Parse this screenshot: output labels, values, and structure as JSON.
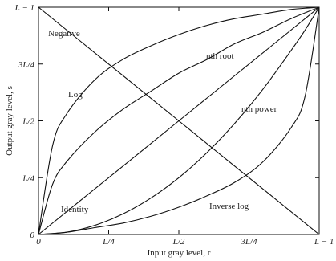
{
  "chart_data": {
    "type": "line",
    "x_ticks": [
      {
        "value": 0,
        "label": "0"
      },
      {
        "value": 0.25,
        "label": "L/4"
      },
      {
        "value": 0.5,
        "label": "L/2"
      },
      {
        "value": 0.75,
        "label": "3L/4"
      },
      {
        "value": 1,
        "label": "L − 1"
      }
    ],
    "y_ticks": [
      {
        "value": 0,
        "label": "0"
      },
      {
        "value": 0.25,
        "label": "L/4"
      },
      {
        "value": 0.5,
        "label": "L/2"
      },
      {
        "value": 0.75,
        "label": "3L/4"
      },
      {
        "value": 1,
        "label": "L − 1"
      }
    ],
    "xlabel": "Input gray level, r",
    "ylabel": "Output gray level, s",
    "xlim": [
      0,
      1
    ],
    "ylim": [
      0,
      1
    ],
    "grid": false,
    "series": [
      {
        "name": "Negative",
        "x": [
          0,
          0.25,
          0.5,
          0.75,
          1
        ],
        "y": [
          1,
          0.75,
          0.5,
          0.25,
          0
        ]
      },
      {
        "name": "Identity",
        "x": [
          0,
          0.25,
          0.5,
          0.75,
          1
        ],
        "y": [
          0,
          0.25,
          0.5,
          0.75,
          1
        ]
      },
      {
        "name": "Log",
        "x": [
          0,
          0.05,
          0.1,
          0.2,
          0.3,
          0.4,
          0.5,
          0.6,
          0.7,
          0.8,
          0.9,
          1
        ],
        "y": [
          0,
          0.39,
          0.53,
          0.68,
          0.77,
          0.83,
          0.88,
          0.92,
          0.95,
          0.97,
          0.99,
          1
        ]
      },
      {
        "name": "nth root",
        "x": [
          0,
          0.05,
          0.1,
          0.2,
          0.3,
          0.4,
          0.5,
          0.6,
          0.7,
          0.8,
          0.9,
          1
        ],
        "y": [
          0,
          0.22,
          0.32,
          0.45,
          0.55,
          0.63,
          0.71,
          0.77,
          0.84,
          0.89,
          0.95,
          1
        ]
      },
      {
        "name": "nth power",
        "x": [
          0,
          0.1,
          0.2,
          0.3,
          0.4,
          0.5,
          0.6,
          0.7,
          0.8,
          0.9,
          0.95,
          1
        ],
        "y": [
          0,
          0.01,
          0.04,
          0.09,
          0.16,
          0.25,
          0.36,
          0.49,
          0.64,
          0.81,
          0.9,
          1
        ]
      },
      {
        "name": "Inverse log",
        "x": [
          0,
          0.1,
          0.2,
          0.3,
          0.4,
          0.5,
          0.6,
          0.7,
          0.8,
          0.9,
          0.95,
          1
        ],
        "y": [
          0,
          0.01,
          0.03,
          0.05,
          0.08,
          0.12,
          0.17,
          0.23,
          0.32,
          0.47,
          0.61,
          1
        ]
      }
    ],
    "annotations": [
      {
        "series": "Negative",
        "text": "Negative"
      },
      {
        "series": "Log",
        "text": "Log"
      },
      {
        "series": "nth root",
        "text": "nth root"
      },
      {
        "series": "nth power",
        "text": "nth power"
      },
      {
        "series": "Identity",
        "text": "Identity"
      },
      {
        "series": "Inverse log",
        "text": "Inverse log"
      }
    ]
  }
}
